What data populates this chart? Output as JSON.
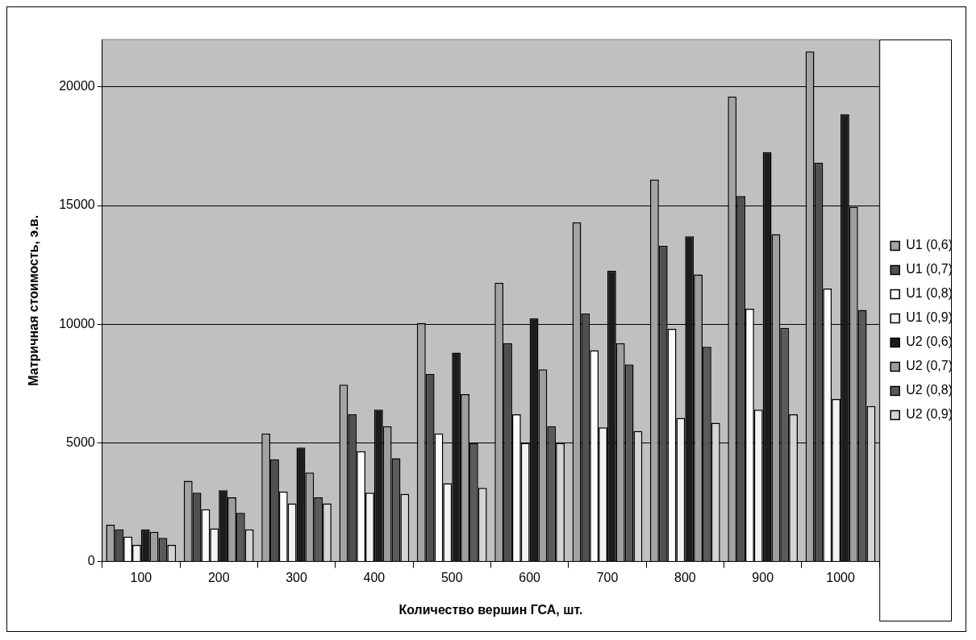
{
  "chart_data": {
    "type": "bar",
    "xlabel": "Количество вершин ГСА, шт.",
    "ylabel": "Матричная стоимость, э.в.",
    "categories": [
      "100",
      "200",
      "300",
      "400",
      "500",
      "600",
      "700",
      "800",
      "900",
      "1000"
    ],
    "series": [
      {
        "name": "U1 (0,6)",
        "color": "#a3a3a3",
        "values": [
          1550,
          3400,
          5400,
          7450,
          10050,
          11750,
          14300,
          16100,
          19600,
          21500
        ]
      },
      {
        "name": "U1 (0,7)",
        "color": "#505050",
        "values": [
          1350,
          2900,
          4300,
          6200,
          7900,
          9200,
          10450,
          13300,
          15400,
          16800
        ]
      },
      {
        "name": "U1 (0,8)",
        "color": "#fcfcfc",
        "values": [
          1050,
          2200,
          2950,
          4650,
          5400,
          6200,
          8900,
          9800,
          10650,
          11500
        ]
      },
      {
        "name": "U1 (0,9)",
        "color": "#f2f2f2",
        "values": [
          700,
          1400,
          2450,
          2900,
          3300,
          5000,
          5650,
          6050,
          6400,
          6850
        ]
      },
      {
        "name": "U2 (0,6)",
        "color": "#1c1c1c",
        "values": [
          1350,
          3000,
          4800,
          6400,
          8800,
          10250,
          12250,
          13700,
          17250,
          18850
        ]
      },
      {
        "name": "U2 (0,7)",
        "color": "#9e9e9e",
        "values": [
          1250,
          2700,
          3750,
          5700,
          7050,
          8100,
          9200,
          12100,
          13800,
          14950
        ]
      },
      {
        "name": "U2 (0,8)",
        "color": "#5a5a5a",
        "values": [
          1000,
          2050,
          2700,
          4350,
          5000,
          5700,
          8300,
          9050,
          9850,
          10600
        ]
      },
      {
        "name": "U2 (0,9)",
        "color": "#d4d4d4",
        "values": [
          700,
          1350,
          2450,
          2850,
          3100,
          5000,
          5500,
          5850,
          6200,
          6550
        ]
      }
    ],
    "ylim": [
      0,
      22000
    ],
    "yticks": [
      0,
      5000,
      10000,
      15000,
      20000
    ],
    "grid": "y",
    "legend": "right"
  }
}
